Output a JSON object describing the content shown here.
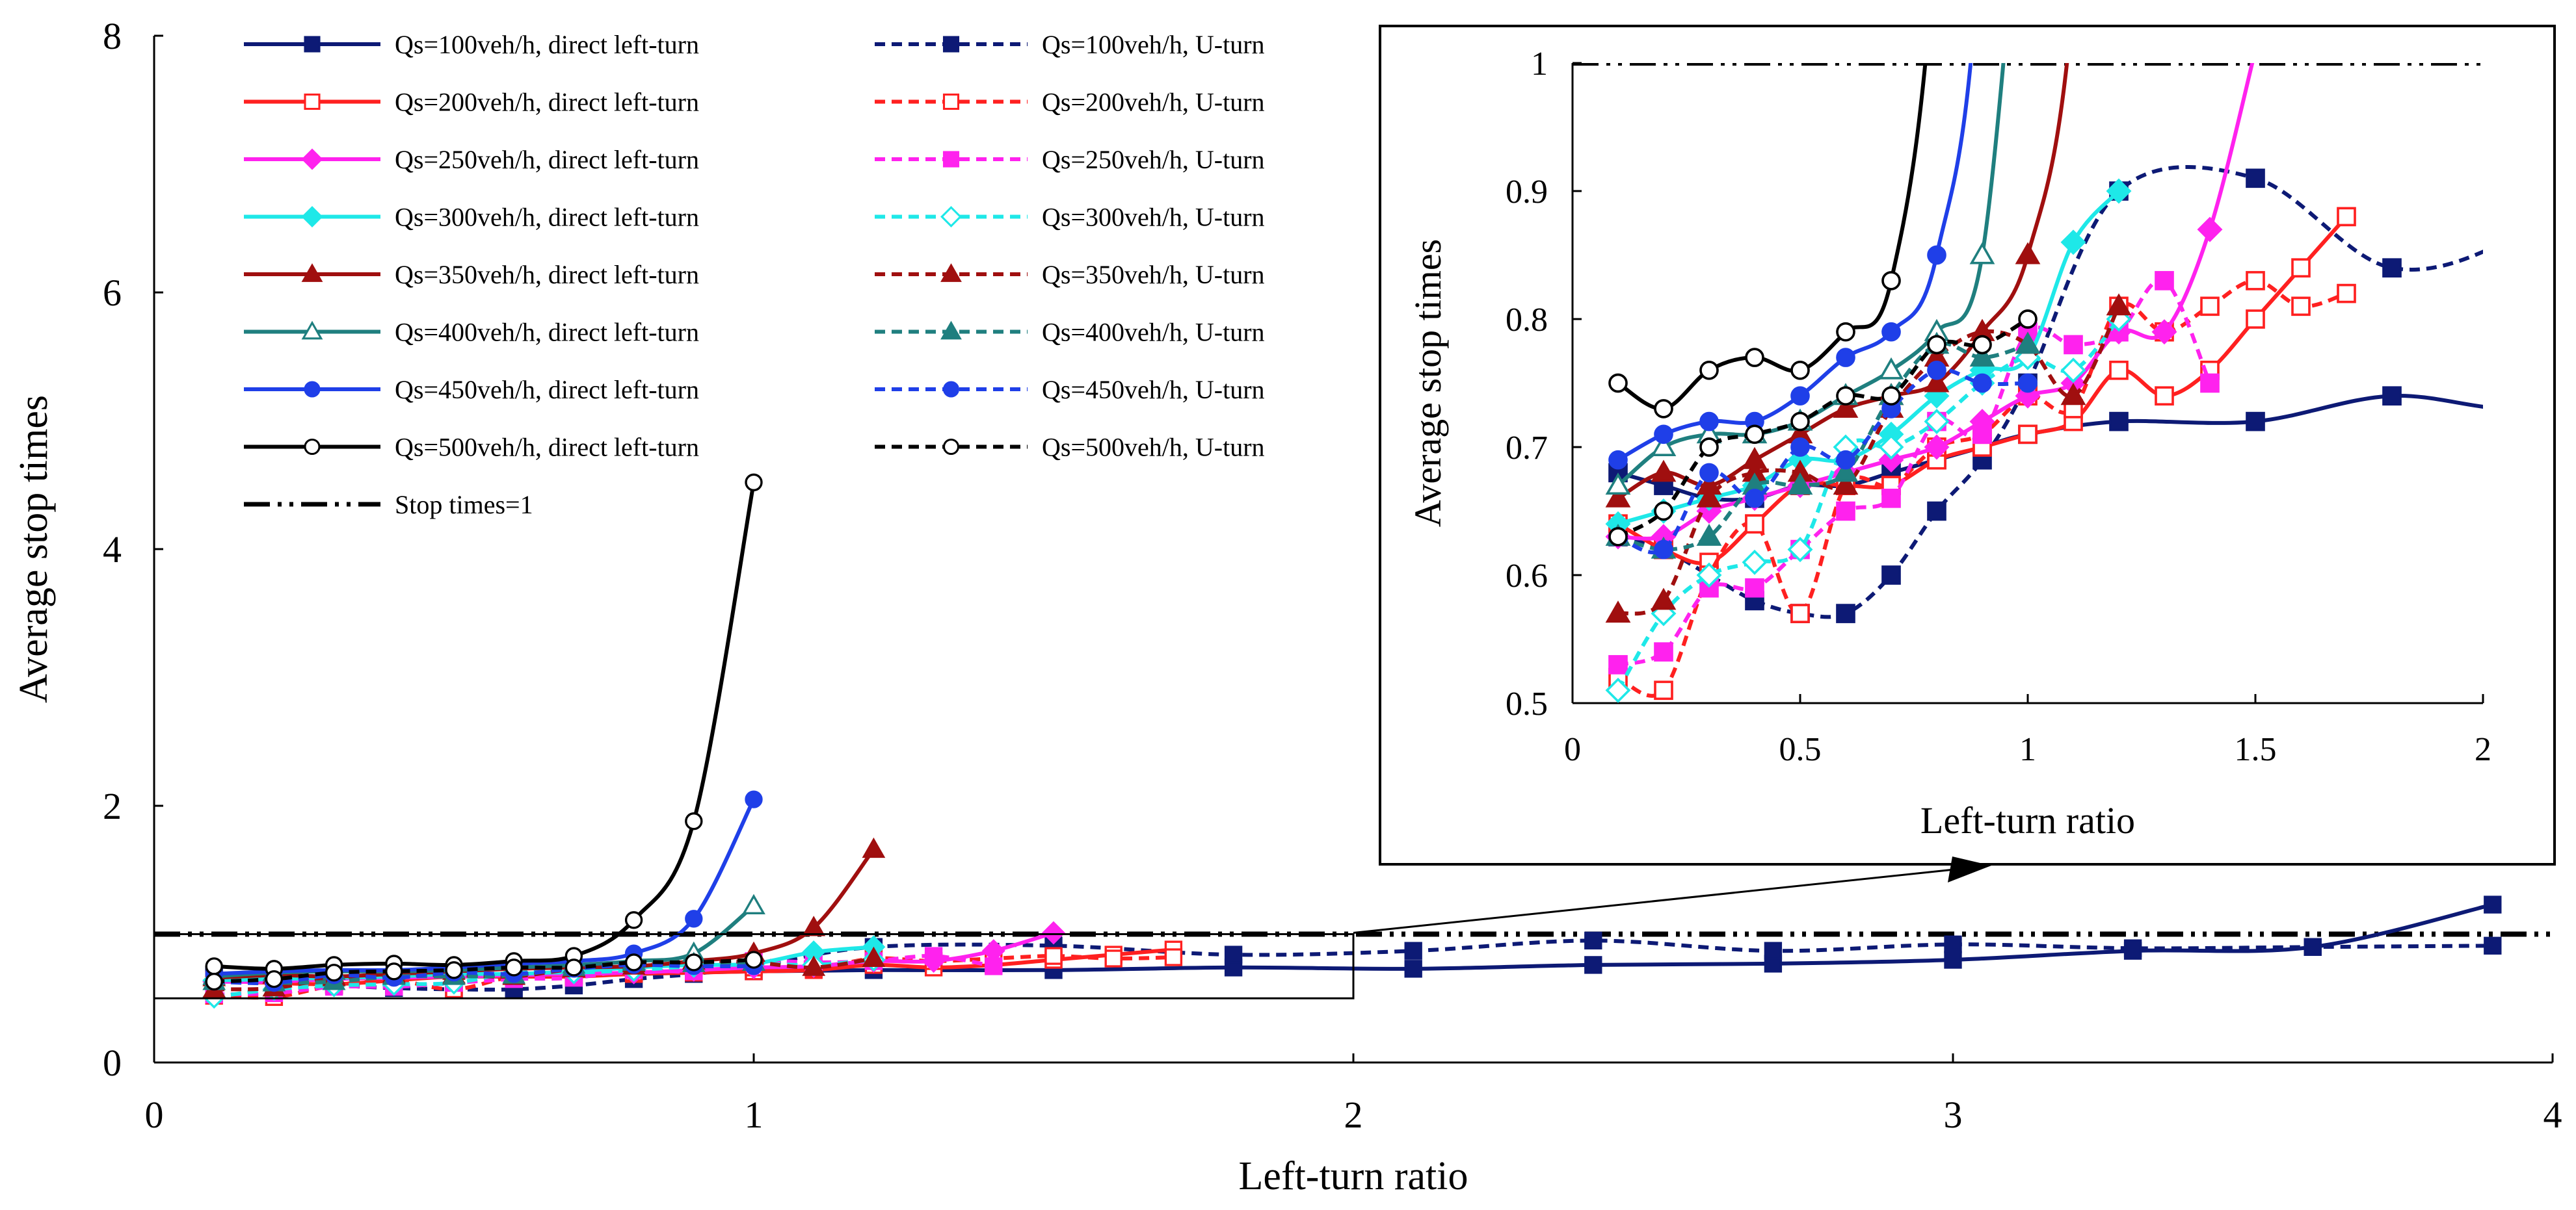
{
  "chart_data": {
    "type": "line",
    "xlabel": "Left-turn ratio",
    "ylabel": "Average stop times",
    "xlim": [
      0,
      4
    ],
    "ylim": [
      0,
      8
    ],
    "xticks": [
      0,
      1,
      2,
      3,
      4
    ],
    "yticks": [
      0,
      2,
      4,
      6,
      8
    ],
    "legend": "top-left, two columns",
    "grid": false,
    "reference_line": {
      "name": "Stop times=1",
      "y": 1,
      "color": "#000000",
      "style": "dash-dot-dot"
    },
    "inset": {
      "xlabel": "Left-turn ratio",
      "ylabel": "Average stop times",
      "xlim": [
        0,
        2
      ],
      "ylim": [
        0.5,
        1
      ],
      "xticks": [
        0,
        0.5,
        1,
        1.5,
        2
      ],
      "xtick_labels": [
        "0",
        "0.5",
        "1",
        "1.5",
        "2"
      ],
      "yticks": [
        0.5,
        0.6,
        0.7,
        0.8,
        0.9,
        1
      ],
      "ytick_labels": [
        "0.5",
        "0.6",
        "0.7",
        "0.8",
        "0.9",
        "1"
      ],
      "zoom_region": {
        "x": [
          0,
          2
        ],
        "y": [
          0.5,
          1
        ]
      }
    },
    "series": [
      {
        "name": "Qs=100veh/h, direct left-turn",
        "color": "#0d1a75",
        "dash": "solid",
        "marker": "square",
        "fill": "filled",
        "x": [
          0.1,
          0.2,
          0.3,
          0.4,
          0.5,
          0.6,
          0.7,
          0.8,
          0.9,
          1.0,
          1.2,
          1.5,
          1.8,
          2.1,
          2.4,
          2.7,
          3.0,
          3.3,
          3.6,
          3.9
        ],
        "y": [
          0.68,
          0.67,
          0.66,
          0.66,
          0.67,
          0.67,
          0.68,
          0.69,
          0.7,
          0.71,
          0.72,
          0.72,
          0.74,
          0.73,
          0.76,
          0.77,
          0.8,
          0.87,
          0.9,
          1.23
        ]
      },
      {
        "name": "Qs=100veh/h, U-turn",
        "color": "#0d1a75",
        "dash": "dashed",
        "marker": "square",
        "fill": "filled",
        "x": [
          0.1,
          0.2,
          0.3,
          0.4,
          0.5,
          0.6,
          0.7,
          0.8,
          0.9,
          1.0,
          1.2,
          1.5,
          1.8,
          2.1,
          2.4,
          2.7,
          3.0,
          3.3,
          3.6,
          3.9
        ],
        "y": [
          0.63,
          0.62,
          0.6,
          0.58,
          0.57,
          0.57,
          0.6,
          0.65,
          0.69,
          0.75,
          0.9,
          0.91,
          0.84,
          0.87,
          0.95,
          0.87,
          0.92,
          0.89,
          0.9,
          0.91
        ]
      },
      {
        "name": "Qs=200veh/h, direct left-turn",
        "color": "#ff2020",
        "dash": "solid",
        "marker": "square",
        "fill": "open",
        "x": [
          0.1,
          0.2,
          0.3,
          0.4,
          0.5,
          0.6,
          0.7,
          0.8,
          0.9,
          1.0,
          1.1,
          1.2,
          1.3,
          1.4,
          1.5,
          1.6,
          1.7
        ],
        "y": [
          0.64,
          0.62,
          0.61,
          0.64,
          0.67,
          0.67,
          0.67,
          0.69,
          0.7,
          0.71,
          0.72,
          0.76,
          0.74,
          0.76,
          0.8,
          0.84,
          0.88
        ]
      },
      {
        "name": "Qs=200veh/h, U-turn",
        "color": "#ff2020",
        "dash": "dashed",
        "marker": "square",
        "fill": "open",
        "x": [
          0.1,
          0.2,
          0.3,
          0.4,
          0.5,
          0.6,
          0.7,
          0.8,
          0.9,
          1.0,
          1.1,
          1.2,
          1.3,
          1.4,
          1.5,
          1.6,
          1.7
        ],
        "y": [
          0.52,
          0.51,
          0.6,
          0.64,
          0.57,
          0.67,
          0.67,
          0.7,
          0.71,
          0.74,
          0.73,
          0.81,
          0.79,
          0.81,
          0.83,
          0.81,
          0.82
        ]
      },
      {
        "name": "Qs=250veh/h, direct left-turn",
        "color": "#ff22ee",
        "dash": "solid",
        "marker": "diamond",
        "fill": "filled",
        "x": [
          0.1,
          0.2,
          0.3,
          0.4,
          0.5,
          0.6,
          0.7,
          0.8,
          0.9,
          1.0,
          1.1,
          1.2,
          1.3,
          1.4,
          1.5
        ],
        "y": [
          0.63,
          0.63,
          0.65,
          0.66,
          0.67,
          0.68,
          0.69,
          0.7,
          0.72,
          0.74,
          0.75,
          0.79,
          0.79,
          0.87,
          1.01
        ]
      },
      {
        "name": "Qs=250veh/h, U-turn",
        "color": "#ff22ee",
        "dash": "dashed",
        "marker": "square",
        "fill": "filled",
        "x": [
          0.1,
          0.2,
          0.3,
          0.4,
          0.5,
          0.6,
          0.7,
          0.8,
          0.9,
          1.0,
          1.1,
          1.2,
          1.3,
          1.4
        ],
        "y": [
          0.53,
          0.54,
          0.59,
          0.59,
          0.62,
          0.65,
          0.66,
          0.72,
          0.71,
          0.79,
          0.78,
          0.79,
          0.83,
          0.75
        ]
      },
      {
        "name": "Qs=300veh/h, direct left-turn",
        "color": "#1ee8e8",
        "dash": "solid",
        "marker": "diamond",
        "fill": "filled",
        "x": [
          0.1,
          0.2,
          0.3,
          0.4,
          0.5,
          0.6,
          0.7,
          0.8,
          0.9,
          1.0,
          1.1,
          1.2
        ],
        "y": [
          0.64,
          0.65,
          0.66,
          0.67,
          0.69,
          0.69,
          0.71,
          0.74,
          0.76,
          0.77,
          0.86,
          0.9
        ]
      },
      {
        "name": "Qs=300veh/h, U-turn",
        "color": "#1ee8e8",
        "dash": "dashed",
        "marker": "diamond",
        "fill": "open",
        "x": [
          0.1,
          0.2,
          0.3,
          0.4,
          0.5,
          0.6,
          0.7,
          0.8,
          0.9,
          1.0,
          1.1,
          1.2
        ],
        "y": [
          0.51,
          0.57,
          0.6,
          0.61,
          0.62,
          0.7,
          0.7,
          0.72,
          0.75,
          0.77,
          0.76,
          0.8
        ]
      },
      {
        "name": "Qs=350veh/h, direct left-turn",
        "color": "#a00f0f",
        "dash": "solid",
        "marker": "triangle",
        "fill": "filled",
        "x": [
          0.1,
          0.2,
          0.3,
          0.4,
          0.5,
          0.6,
          0.7,
          0.8,
          0.9,
          1.0,
          1.1,
          1.2
        ],
        "y": [
          0.66,
          0.68,
          0.67,
          0.69,
          0.71,
          0.73,
          0.74,
          0.75,
          0.79,
          0.85,
          1.05,
          1.66
        ]
      },
      {
        "name": "Qs=350veh/h, U-turn",
        "color": "#a00f0f",
        "dash": "dashed",
        "marker": "triangle",
        "fill": "filled",
        "x": [
          0.1,
          0.2,
          0.3,
          0.4,
          0.5,
          0.6,
          0.7,
          0.8,
          0.9,
          1.0,
          1.1,
          1.2
        ],
        "y": [
          0.57,
          0.58,
          0.66,
          0.68,
          0.68,
          0.67,
          0.73,
          0.77,
          0.79,
          0.78,
          0.74,
          0.81
        ]
      },
      {
        "name": "Qs=400veh/h, direct left-turn",
        "color": "#1f7f7f",
        "dash": "solid",
        "marker": "triangle",
        "fill": "open",
        "x": [
          0.1,
          0.2,
          0.3,
          0.4,
          0.5,
          0.6,
          0.7,
          0.8,
          0.9,
          1.0
        ],
        "y": [
          0.67,
          0.7,
          0.71,
          0.71,
          0.72,
          0.74,
          0.76,
          0.79,
          0.85,
          1.22
        ]
      },
      {
        "name": "Qs=400veh/h, U-turn",
        "color": "#1f7f7f",
        "dash": "dashed",
        "marker": "triangle",
        "fill": "filled",
        "x": [
          0.1,
          0.2,
          0.3,
          0.4,
          0.5,
          0.6,
          0.7,
          0.8,
          0.9,
          1.0
        ],
        "y": [
          0.63,
          0.62,
          0.63,
          0.67,
          0.67,
          0.68,
          0.74,
          0.78,
          0.77,
          0.78
        ]
      },
      {
        "name": "Qs=450veh/h, direct left-turn",
        "color": "#1f3fe8",
        "dash": "solid",
        "marker": "circle",
        "fill": "filled",
        "x": [
          0.1,
          0.2,
          0.3,
          0.4,
          0.5,
          0.6,
          0.7,
          0.8,
          0.9,
          1.0
        ],
        "y": [
          0.69,
          0.71,
          0.72,
          0.72,
          0.74,
          0.77,
          0.79,
          0.85,
          1.12,
          2.05
        ]
      },
      {
        "name": "Qs=450veh/h, U-turn",
        "color": "#1f3fe8",
        "dash": "dashed",
        "marker": "circle",
        "fill": "filled",
        "x": [
          0.1,
          0.2,
          0.3,
          0.4,
          0.5,
          0.6,
          0.7,
          0.8,
          0.9,
          1.0
        ],
        "y": [
          0.63,
          0.62,
          0.68,
          0.66,
          0.7,
          0.69,
          0.73,
          0.76,
          0.75,
          0.75
        ]
      },
      {
        "name": "Qs=500veh/h, direct left-turn",
        "color": "#000000",
        "dash": "solid",
        "marker": "circle",
        "fill": "open",
        "x": [
          0.1,
          0.2,
          0.3,
          0.4,
          0.5,
          0.6,
          0.7,
          0.8,
          0.9,
          1.0
        ],
        "y": [
          0.75,
          0.73,
          0.76,
          0.77,
          0.76,
          0.79,
          0.83,
          1.11,
          1.88,
          4.52
        ]
      },
      {
        "name": "Qs=500veh/h, U-turn",
        "color": "#000000",
        "dash": "dashed",
        "marker": "circle",
        "fill": "open",
        "x": [
          0.1,
          0.2,
          0.3,
          0.4,
          0.5,
          0.6,
          0.7,
          0.8,
          0.9,
          1.0
        ],
        "y": [
          0.63,
          0.65,
          0.7,
          0.71,
          0.72,
          0.74,
          0.74,
          0.78,
          0.78,
          0.8
        ]
      }
    ]
  }
}
